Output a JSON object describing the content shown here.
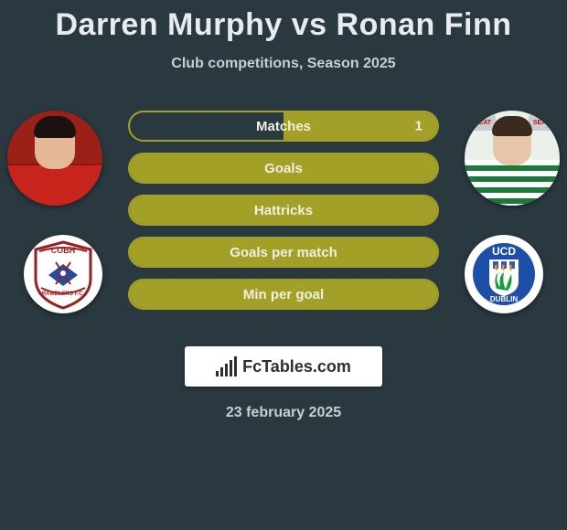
{
  "colors": {
    "background": "#2a3840",
    "accent": "#a3a028",
    "text_light": "#e8ecee",
    "text_muted": "#c7cfd3"
  },
  "header": {
    "player1_name": "Darren Murphy",
    "vs_text": "vs",
    "player2_name": "Ronan Finn",
    "subtitle": "Club competitions, Season 2025"
  },
  "player1": {
    "jersey_color": "#c8261c",
    "club_name": "Cobh Ramblers"
  },
  "player2": {
    "jersey_stripe_primary": "#1a7a3a",
    "jersey_stripe_secondary": "#ffffff",
    "sponsor_text": "SEAT",
    "club_name": "UCD Dublin"
  },
  "stats": [
    {
      "label": "Matches",
      "p1_value": "",
      "p2_value": "1",
      "p1_fill_pct": 0,
      "p2_fill_pct": 100
    },
    {
      "label": "Goals",
      "p1_value": "",
      "p2_value": "",
      "p1_fill_pct": 100,
      "p2_fill_pct": 100
    },
    {
      "label": "Hattricks",
      "p1_value": "",
      "p2_value": "",
      "p1_fill_pct": 100,
      "p2_fill_pct": 100
    },
    {
      "label": "Goals per match",
      "p1_value": "",
      "p2_value": "",
      "p1_fill_pct": 100,
      "p2_fill_pct": 100
    },
    {
      "label": "Min per goal",
      "p1_value": "",
      "p2_value": "",
      "p1_fill_pct": 100,
      "p2_fill_pct": 100
    }
  ],
  "brand": {
    "icon_bar_heights": [
      6,
      10,
      14,
      18,
      22
    ],
    "text": "FcTables.com"
  },
  "footer": {
    "date": "23 february 2025"
  },
  "crest1": {
    "top_text": "COBH",
    "bottom_text": "RAMBLERS F.C.",
    "shield_fill": "#ffffff",
    "border": "#9a1f1f",
    "chevron": "#2a4a9a"
  },
  "crest2": {
    "top_text": "UCD",
    "bottom_text": "DUBLIN",
    "bg": "#1e4fa8",
    "shield": "#ffffff",
    "harp": "#1a9a3a",
    "flames": "#f0a018"
  }
}
